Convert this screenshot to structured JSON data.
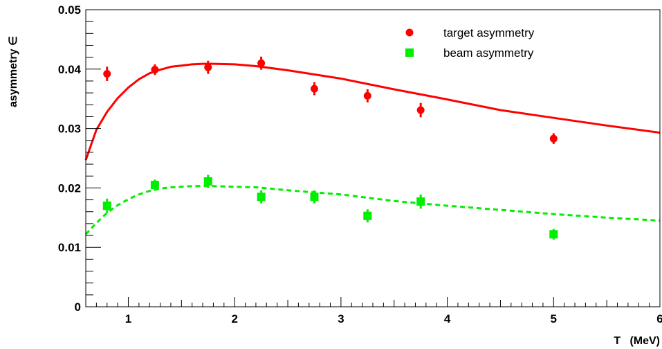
{
  "chart_data": {
    "type": "scatter",
    "title": "",
    "xlabel": "T   (MeV)",
    "ylabel": "asymmetry ∈",
    "xlim": [
      0.6,
      6.0
    ],
    "ylim": [
      0,
      0.05
    ],
    "x_ticks": [
      "1",
      "2",
      "3",
      "4",
      "5",
      "6"
    ],
    "y_ticks": [
      "0",
      "0.01",
      "0.02",
      "0.03",
      "0.04",
      "0.05"
    ],
    "grid": false,
    "legend_position": "top-right",
    "series": [
      {
        "name": "target asymmetry",
        "color": "#ff0000",
        "marker": "circle",
        "points": [
          {
            "x": 0.8,
            "y": 0.0392,
            "err": 0.0012
          },
          {
            "x": 1.25,
            "y": 0.0399,
            "err": 0.0009
          },
          {
            "x": 1.75,
            "y": 0.0403,
            "err": 0.0011
          },
          {
            "x": 2.25,
            "y": 0.041,
            "err": 0.0011
          },
          {
            "x": 2.75,
            "y": 0.0367,
            "err": 0.0011
          },
          {
            "x": 3.25,
            "y": 0.0355,
            "err": 0.0011
          },
          {
            "x": 3.75,
            "y": 0.0331,
            "err": 0.0012
          },
          {
            "x": 5.0,
            "y": 0.0283,
            "err": 0.0009
          }
        ],
        "curve": {
          "style": "solid",
          "x": [
            0.6,
            0.7,
            0.8,
            0.9,
            1.0,
            1.1,
            1.2,
            1.3,
            1.4,
            1.5,
            1.6,
            1.7,
            1.8,
            2.0,
            2.2,
            2.5,
            3.0,
            3.5,
            4.0,
            4.5,
            5.0,
            5.5,
            6.0
          ],
          "y": [
            0.0247,
            0.0298,
            0.0328,
            0.0351,
            0.0369,
            0.0383,
            0.0393,
            0.0399,
            0.0404,
            0.0406,
            0.0408,
            0.0409,
            0.0409,
            0.0408,
            0.0405,
            0.0398,
            0.0384,
            0.0366,
            0.0349,
            0.0331,
            0.0318,
            0.0305,
            0.0293
          ]
        }
      },
      {
        "name": "beam asymmetry",
        "color": "#00ee00",
        "marker": "square",
        "points": [
          {
            "x": 0.8,
            "y": 0.017,
            "err": 0.0012
          },
          {
            "x": 1.25,
            "y": 0.0205,
            "err": 0.0009
          },
          {
            "x": 1.75,
            "y": 0.0211,
            "err": 0.0011
          },
          {
            "x": 2.25,
            "y": 0.0185,
            "err": 0.0011
          },
          {
            "x": 2.75,
            "y": 0.0185,
            "err": 0.0011
          },
          {
            "x": 3.25,
            "y": 0.0153,
            "err": 0.0011
          },
          {
            "x": 3.75,
            "y": 0.0177,
            "err": 0.0012
          },
          {
            "x": 5.0,
            "y": 0.0122,
            "err": 0.0009
          }
        ],
        "curve": {
          "style": "dashed",
          "x": [
            0.6,
            0.7,
            0.8,
            0.9,
            1.0,
            1.1,
            1.2,
            1.3,
            1.4,
            1.5,
            1.6,
            1.7,
            1.8,
            2.0,
            2.2,
            2.5,
            3.0,
            3.5,
            4.0,
            4.5,
            5.0,
            5.5,
            6.0
          ],
          "y": [
            0.0122,
            0.0141,
            0.0158,
            0.0171,
            0.0181,
            0.0189,
            0.0195,
            0.0199,
            0.0201,
            0.0202,
            0.0203,
            0.0203,
            0.0203,
            0.0202,
            0.0201,
            0.0196,
            0.0189,
            0.0178,
            0.017,
            0.0163,
            0.0156,
            0.015,
            0.0145
          ]
        }
      }
    ]
  }
}
